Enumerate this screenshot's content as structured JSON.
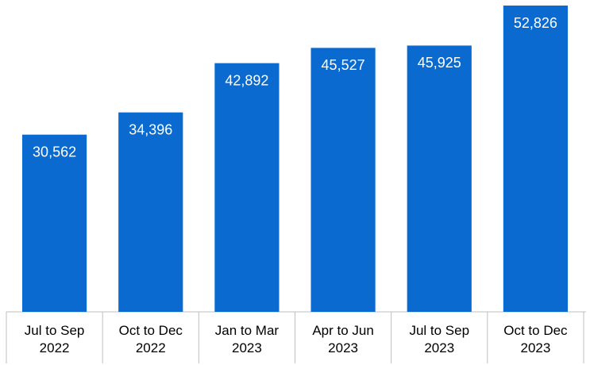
{
  "chart_data": {
    "type": "bar",
    "categories": [
      "Jul to Sep 2022",
      "Oct to Dec 2022",
      "Jan to Mar 2023",
      "Apr to Jun 2023",
      "Jul to Sep 2023",
      "Oct to Dec 2023"
    ],
    "values": [
      30562,
      34396,
      42892,
      45527,
      45925,
      52826
    ],
    "value_labels": [
      "30,562",
      "34,396",
      "42,892",
      "45,527",
      "45,925",
      "52,826"
    ],
    "color": "#0A6ACF"
  }
}
